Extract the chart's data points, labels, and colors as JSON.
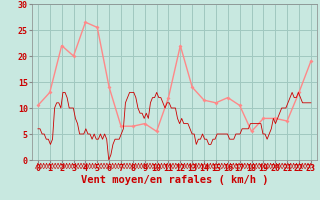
{
  "background_color": "#c8e8e0",
  "grid_color": "#a0c8c0",
  "xlabel": "Vent moyen/en rafales ( km/h )",
  "ylim": [
    0,
    30
  ],
  "xlim": [
    -0.5,
    23.5
  ],
  "yticks": [
    0,
    5,
    10,
    15,
    20,
    25,
    30
  ],
  "xticks": [
    0,
    1,
    2,
    3,
    4,
    5,
    6,
    7,
    8,
    9,
    10,
    11,
    12,
    13,
    14,
    15,
    16,
    17,
    18,
    19,
    20,
    21,
    22,
    23
  ],
  "line_color_avg": "#cc0000",
  "line_color_gust": "#ff8888",
  "avg_wind": [
    6,
    6,
    5,
    5,
    4,
    4,
    3,
    4,
    10,
    11,
    11,
    10,
    13,
    13,
    12,
    10,
    10,
    10,
    8,
    7,
    5,
    5,
    5,
    6,
    5,
    5,
    4,
    5,
    4,
    4,
    5,
    4,
    5,
    4,
    0,
    1,
    3,
    4,
    4,
    4,
    5,
    6,
    11,
    12,
    13,
    13,
    13,
    12,
    10,
    9,
    9,
    8,
    9,
    8,
    11,
    12,
    12,
    13,
    12,
    12,
    11,
    10,
    11,
    11,
    10,
    10,
    10,
    8,
    7,
    8,
    7,
    7,
    7,
    6,
    5,
    5,
    3,
    4,
    4,
    5,
    4,
    4,
    3,
    3,
    4,
    4,
    5,
    5,
    5,
    5,
    5,
    5,
    4,
    4,
    4,
    5,
    5,
    5,
    6,
    6,
    6,
    6,
    7,
    7,
    7,
    7,
    7,
    7,
    5,
    5,
    4,
    5,
    6,
    8,
    7,
    8,
    9,
    10,
    10,
    10,
    11,
    12,
    13,
    12,
    12,
    13,
    12,
    11,
    11,
    11,
    11,
    11
  ],
  "gust_wind_x": [
    0,
    1,
    2,
    3,
    4,
    5,
    6,
    7,
    8,
    9,
    10,
    11,
    12,
    13,
    14,
    15,
    16,
    17,
    18,
    19,
    20,
    21,
    22,
    23
  ],
  "gust_wind_y": [
    10.5,
    13,
    22,
    20,
    26.5,
    25.5,
    14,
    6.5,
    6.5,
    7,
    5.5,
    12,
    22,
    14,
    11.5,
    11,
    12,
    10.5,
    5.5,
    8,
    8,
    7.5,
    13,
    19
  ],
  "tick_fontsize": 6,
  "xlabel_fontsize": 7.5,
  "tick_color": "#cc0000",
  "xlabel_color": "#cc0000"
}
